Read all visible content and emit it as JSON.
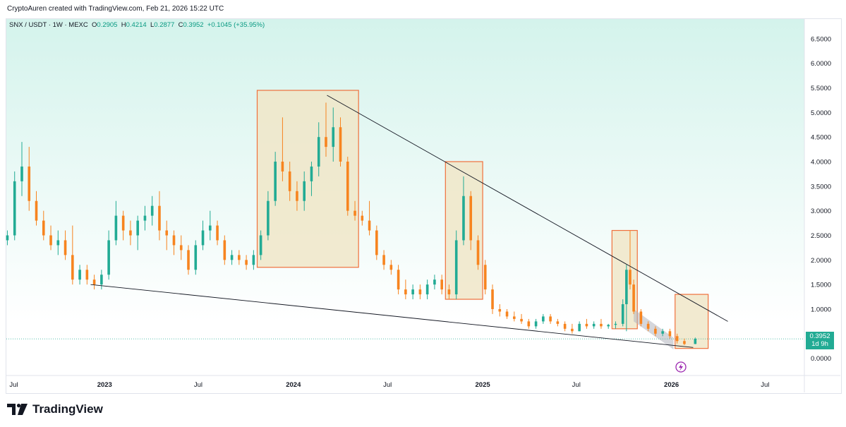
{
  "header": {
    "attribution": "CryptoAuren created with TradingView.com, Feb 21, 2026 15:22 UTC"
  },
  "legend": {
    "symbol": "SNX / USDT · 1W · MEXC",
    "o_label": "O",
    "o_value": "0.2905",
    "h_label": "H",
    "h_value": "0.4214",
    "l_label": "L",
    "l_value": "0.2877",
    "c_label": "C",
    "c_value": "0.3952",
    "change": "+0.1045 (+35.95%)"
  },
  "price_tag": {
    "price": "0.3952",
    "countdown": "1d 9h"
  },
  "brand": {
    "name": "TradingView"
  },
  "colors": {
    "up": "#22ab94",
    "down": "#f7841f",
    "box_fill": "#f0e6c8",
    "box_stroke": "#f0703c",
    "bg_top": "#d4f3ec"
  },
  "chart_data": {
    "type": "candlestick",
    "title": "",
    "xlabel": "",
    "ylabel": "",
    "ylim": [
      -0.35,
      6.9
    ],
    "y_ticks": [
      "6.5000",
      "6.0000",
      "5.5000",
      "5.0000",
      "4.5000",
      "4.0000",
      "3.5000",
      "3.0000",
      "2.5000",
      "2.0000",
      "1.5000",
      "1.0000",
      "0.5000",
      "0.0000"
    ],
    "x_ticks": [
      "Jul",
      "2023",
      "Jul",
      "2024",
      "Jul",
      "2025",
      "Jul",
      "2026",
      "Jul"
    ],
    "x_tick_dates": [
      "2022-07-01",
      "2023-01-01",
      "2023-07-01",
      "2024-01-01",
      "2024-07-01",
      "2025-01-01",
      "2025-07-01",
      "2026-01-01",
      "2026-07-01"
    ],
    "x_range": [
      "2022-06-25",
      "2026-09-15"
    ],
    "series": [
      {
        "candles": [
          [
            "2022-06-27",
            2.4,
            2.6,
            2.3,
            2.5
          ],
          [
            "2022-07-11",
            2.5,
            3.8,
            2.4,
            3.6
          ],
          [
            "2022-07-25",
            3.6,
            4.4,
            3.3,
            3.9
          ],
          [
            "2022-08-08",
            3.9,
            4.3,
            3.0,
            3.2
          ],
          [
            "2022-08-22",
            3.2,
            3.4,
            2.7,
            2.8
          ],
          [
            "2022-09-05",
            2.8,
            3.0,
            2.4,
            2.5
          ],
          [
            "2022-09-19",
            2.5,
            2.7,
            2.2,
            2.3
          ],
          [
            "2022-10-03",
            2.3,
            2.6,
            2.1,
            2.4
          ],
          [
            "2022-10-17",
            2.4,
            2.6,
            2.0,
            2.1
          ],
          [
            "2022-10-31",
            2.1,
            2.7,
            1.5,
            1.6
          ],
          [
            "2022-11-14",
            1.6,
            1.9,
            1.5,
            1.8
          ],
          [
            "2022-11-28",
            1.8,
            1.9,
            1.5,
            1.6
          ],
          [
            "2022-12-12",
            1.6,
            1.7,
            1.4,
            1.5
          ],
          [
            "2022-12-26",
            1.5,
            1.8,
            1.4,
            1.7
          ],
          [
            "2023-01-09",
            1.7,
            2.6,
            1.6,
            2.4
          ],
          [
            "2023-01-23",
            2.4,
            3.2,
            2.3,
            2.9
          ],
          [
            "2023-02-06",
            2.9,
            3.0,
            2.4,
            2.6
          ],
          [
            "2023-02-20",
            2.6,
            2.8,
            2.3,
            2.5
          ],
          [
            "2023-03-06",
            2.5,
            2.9,
            2.2,
            2.8
          ],
          [
            "2023-03-20",
            2.8,
            3.1,
            2.6,
            2.9
          ],
          [
            "2023-04-03",
            2.9,
            3.3,
            2.7,
            3.1
          ],
          [
            "2023-04-17",
            3.1,
            3.4,
            2.4,
            2.6
          ],
          [
            "2023-05-01",
            2.6,
            2.8,
            2.2,
            2.5
          ],
          [
            "2023-05-15",
            2.5,
            2.6,
            2.1,
            2.3
          ],
          [
            "2023-05-29",
            2.3,
            2.5,
            2.0,
            2.2
          ],
          [
            "2023-06-12",
            2.2,
            2.3,
            1.7,
            1.8
          ],
          [
            "2023-06-26",
            1.8,
            2.4,
            1.7,
            2.3
          ],
          [
            "2023-07-10",
            2.3,
            2.8,
            2.2,
            2.6
          ],
          [
            "2023-07-24",
            2.6,
            3.0,
            2.4,
            2.7
          ],
          [
            "2023-08-07",
            2.7,
            2.8,
            2.3,
            2.4
          ],
          [
            "2023-08-21",
            2.4,
            2.5,
            1.9,
            2.0
          ],
          [
            "2023-09-04",
            2.0,
            2.2,
            1.9,
            2.1
          ],
          [
            "2023-09-18",
            2.1,
            2.2,
            1.9,
            2.0
          ],
          [
            "2023-10-02",
            2.0,
            2.1,
            1.8,
            1.9
          ],
          [
            "2023-10-16",
            1.9,
            2.2,
            1.8,
            2.1
          ],
          [
            "2023-10-30",
            2.1,
            2.6,
            2.0,
            2.5
          ],
          [
            "2023-11-13",
            2.5,
            3.4,
            2.4,
            3.2
          ],
          [
            "2023-11-27",
            3.2,
            4.2,
            3.1,
            4.0
          ],
          [
            "2023-12-11",
            4.0,
            4.9,
            3.6,
            3.8
          ],
          [
            "2023-12-25",
            3.8,
            4.0,
            3.2,
            3.4
          ],
          [
            "2024-01-08",
            3.4,
            3.6,
            3.0,
            3.2
          ],
          [
            "2024-01-22",
            3.2,
            3.8,
            3.0,
            3.6
          ],
          [
            "2024-02-05",
            3.6,
            4.0,
            3.3,
            3.9
          ],
          [
            "2024-02-19",
            3.9,
            4.8,
            3.7,
            4.5
          ],
          [
            "2024-03-04",
            4.5,
            5.2,
            4.1,
            4.3
          ],
          [
            "2024-03-18",
            4.3,
            5.1,
            4.0,
            4.7
          ],
          [
            "2024-04-01",
            4.7,
            4.9,
            3.9,
            4.0
          ],
          [
            "2024-04-15",
            4.0,
            4.1,
            2.9,
            3.0
          ],
          [
            "2024-04-29",
            3.0,
            3.2,
            2.8,
            2.9
          ],
          [
            "2024-05-13",
            2.9,
            3.0,
            2.7,
            2.8
          ],
          [
            "2024-05-27",
            2.8,
            3.2,
            2.5,
            2.6
          ],
          [
            "2024-06-10",
            2.6,
            2.7,
            2.0,
            2.1
          ],
          [
            "2024-06-24",
            2.1,
            2.2,
            1.8,
            1.9
          ],
          [
            "2024-07-08",
            1.9,
            2.0,
            1.7,
            1.8
          ],
          [
            "2024-07-22",
            1.8,
            1.9,
            1.3,
            1.4
          ],
          [
            "2024-08-05",
            1.4,
            1.6,
            1.2,
            1.3
          ],
          [
            "2024-08-19",
            1.3,
            1.5,
            1.2,
            1.4
          ],
          [
            "2024-09-02",
            1.4,
            1.5,
            1.2,
            1.3
          ],
          [
            "2024-09-16",
            1.3,
            1.6,
            1.2,
            1.5
          ],
          [
            "2024-09-30",
            1.5,
            1.7,
            1.4,
            1.6
          ],
          [
            "2024-10-14",
            1.6,
            1.7,
            1.3,
            1.4
          ],
          [
            "2024-10-28",
            1.4,
            1.5,
            1.2,
            1.3
          ],
          [
            "2024-11-11",
            1.3,
            2.6,
            1.2,
            2.4
          ],
          [
            "2024-11-25",
            2.4,
            3.7,
            2.3,
            3.3
          ],
          [
            "2024-12-09",
            3.3,
            3.4,
            2.2,
            2.4
          ],
          [
            "2024-12-23",
            2.4,
            2.5,
            1.8,
            1.9
          ],
          [
            "2025-01-06",
            1.9,
            2.0,
            1.3,
            1.4
          ],
          [
            "2025-01-20",
            1.4,
            1.5,
            0.9,
            1.0
          ],
          [
            "2025-02-03",
            1.0,
            1.1,
            0.85,
            0.95
          ],
          [
            "2025-02-17",
            0.95,
            1.0,
            0.8,
            0.85
          ],
          [
            "2025-03-03",
            0.85,
            0.95,
            0.75,
            0.8
          ],
          [
            "2025-03-17",
            0.8,
            0.9,
            0.7,
            0.75
          ],
          [
            "2025-03-31",
            0.75,
            0.8,
            0.6,
            0.65
          ],
          [
            "2025-04-14",
            0.65,
            0.8,
            0.6,
            0.75
          ],
          [
            "2025-04-28",
            0.75,
            0.9,
            0.7,
            0.85
          ],
          [
            "2025-05-12",
            0.85,
            0.9,
            0.7,
            0.75
          ],
          [
            "2025-05-26",
            0.75,
            0.8,
            0.65,
            0.7
          ],
          [
            "2025-06-09",
            0.7,
            0.75,
            0.55,
            0.6
          ],
          [
            "2025-06-23",
            0.6,
            0.7,
            0.5,
            0.55
          ],
          [
            "2025-07-07",
            0.55,
            0.75,
            0.55,
            0.7
          ],
          [
            "2025-07-21",
            0.7,
            0.8,
            0.6,
            0.65
          ],
          [
            "2025-08-04",
            0.65,
            0.75,
            0.6,
            0.7
          ],
          [
            "2025-08-18",
            0.7,
            0.8,
            0.6,
            0.65
          ],
          [
            "2025-09-01",
            0.65,
            0.7,
            0.6,
            0.68
          ],
          [
            "2025-09-15",
            0.68,
            0.75,
            0.6,
            0.7
          ],
          [
            "2025-09-29",
            0.7,
            1.2,
            0.65,
            1.1
          ],
          [
            "2025-10-06",
            1.1,
            1.9,
            0.55,
            1.8
          ],
          [
            "2025-10-13",
            1.8,
            2.6,
            1.4,
            1.5
          ],
          [
            "2025-10-20",
            1.5,
            1.6,
            0.9,
            0.95
          ],
          [
            "2025-11-03",
            0.95,
            1.0,
            0.65,
            0.7
          ],
          [
            "2025-11-17",
            0.7,
            0.75,
            0.55,
            0.6
          ],
          [
            "2025-12-01",
            0.6,
            0.65,
            0.45,
            0.5
          ],
          [
            "2025-12-15",
            0.5,
            0.6,
            0.45,
            0.55
          ],
          [
            "2025-12-29",
            0.55,
            0.6,
            0.4,
            0.45
          ],
          [
            "2026-01-12",
            0.45,
            0.5,
            0.3,
            0.35
          ],
          [
            "2026-01-26",
            0.35,
            0.4,
            0.27,
            0.29
          ],
          [
            "2026-02-16",
            0.2905,
            0.4214,
            0.2877,
            0.3952
          ]
        ]
      }
    ],
    "annotations": {
      "boxes": [
        {
          "x0": "2023-10-23",
          "x1": "2024-05-06",
          "y0": 1.85,
          "y1": 5.45
        },
        {
          "x0": "2024-10-21",
          "x1": "2025-01-01",
          "y0": 1.2,
          "y1": 4.0
        },
        {
          "x0": "2025-09-08",
          "x1": "2025-10-27",
          "y0": 0.6,
          "y1": 2.6
        },
        {
          "x0": "2026-01-08",
          "x1": "2026-03-13",
          "y0": 0.2,
          "y1": 1.3
        }
      ],
      "trendlines": [
        {
          "x0": "2022-12-05",
          "y0": 1.5,
          "x1": "2026-02-12",
          "y1": 0.22
        },
        {
          "x0": "2024-03-06",
          "y0": 5.35,
          "x1": "2026-04-20",
          "y1": 0.75
        }
      ],
      "gray_channel": {
        "x0": "2025-10-20",
        "x1": "2026-01-05",
        "top0": 1.0,
        "top1": 0.42,
        "bot0": 0.75,
        "bot1": 0.18
      },
      "current_price_line": 0.3952
    }
  }
}
